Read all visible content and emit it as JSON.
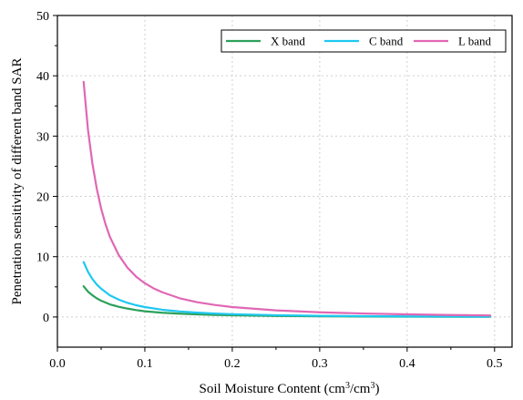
{
  "chart_data": {
    "type": "line",
    "xlabel": "Soil Moisture Content (cm",
    "xlabel_unit_exp1": "3",
    "xlabel_unit_mid": "/cm",
    "xlabel_unit_exp2": "3",
    "xlabel_unit_end": ")",
    "ylabel": "Penetration sensitivity of different band SAR",
    "xlim": [
      0.0,
      0.52
    ],
    "ylim": [
      -5,
      50
    ],
    "xticks": [
      0.0,
      0.1,
      0.2,
      0.3,
      0.4,
      0.5
    ],
    "xtick_labels": [
      "0.0",
      "0.1",
      "0.2",
      "0.3",
      "0.4",
      "0.5"
    ],
    "yticks": [
      0,
      10,
      20,
      30,
      40,
      50
    ],
    "ytick_labels": [
      "0",
      "10",
      "20",
      "30",
      "40",
      "50"
    ],
    "grid": true,
    "legend_position": "top-right",
    "series": [
      {
        "name": "X band",
        "color": "#2ca05a",
        "x": [
          0.03,
          0.035,
          0.04,
          0.045,
          0.05,
          0.06,
          0.07,
          0.08,
          0.09,
          0.1,
          0.12,
          0.14,
          0.16,
          0.18,
          0.2,
          0.25,
          0.3,
          0.35,
          0.4,
          0.45,
          0.495
        ],
        "y": [
          5.1,
          4.2,
          3.6,
          3.1,
          2.7,
          2.1,
          1.7,
          1.4,
          1.15,
          0.95,
          0.7,
          0.55,
          0.43,
          0.35,
          0.28,
          0.18,
          0.12,
          0.08,
          0.06,
          0.04,
          0.03
        ]
      },
      {
        "name": "C band",
        "color": "#1ec8f0",
        "x": [
          0.03,
          0.035,
          0.04,
          0.045,
          0.05,
          0.06,
          0.07,
          0.08,
          0.09,
          0.1,
          0.12,
          0.14,
          0.16,
          0.18,
          0.2,
          0.25,
          0.3,
          0.35,
          0.4,
          0.45,
          0.495
        ],
        "y": [
          9.1,
          7.5,
          6.3,
          5.4,
          4.7,
          3.6,
          2.9,
          2.35,
          1.95,
          1.65,
          1.2,
          0.92,
          0.72,
          0.58,
          0.47,
          0.3,
          0.2,
          0.14,
          0.1,
          0.07,
          0.05
        ]
      },
      {
        "name": "L band",
        "color": "#e067b4",
        "x": [
          0.03,
          0.035,
          0.04,
          0.045,
          0.05,
          0.055,
          0.06,
          0.07,
          0.08,
          0.09,
          0.1,
          0.11,
          0.12,
          0.14,
          0.16,
          0.18,
          0.2,
          0.25,
          0.3,
          0.35,
          0.4,
          0.45,
          0.495
        ],
        "y": [
          39.0,
          31.0,
          25.5,
          21.3,
          18.0,
          15.4,
          13.3,
          10.3,
          8.2,
          6.7,
          5.6,
          4.75,
          4.1,
          3.1,
          2.45,
          2.0,
          1.65,
          1.1,
          0.78,
          0.58,
          0.44,
          0.33,
          0.26
        ]
      }
    ]
  }
}
